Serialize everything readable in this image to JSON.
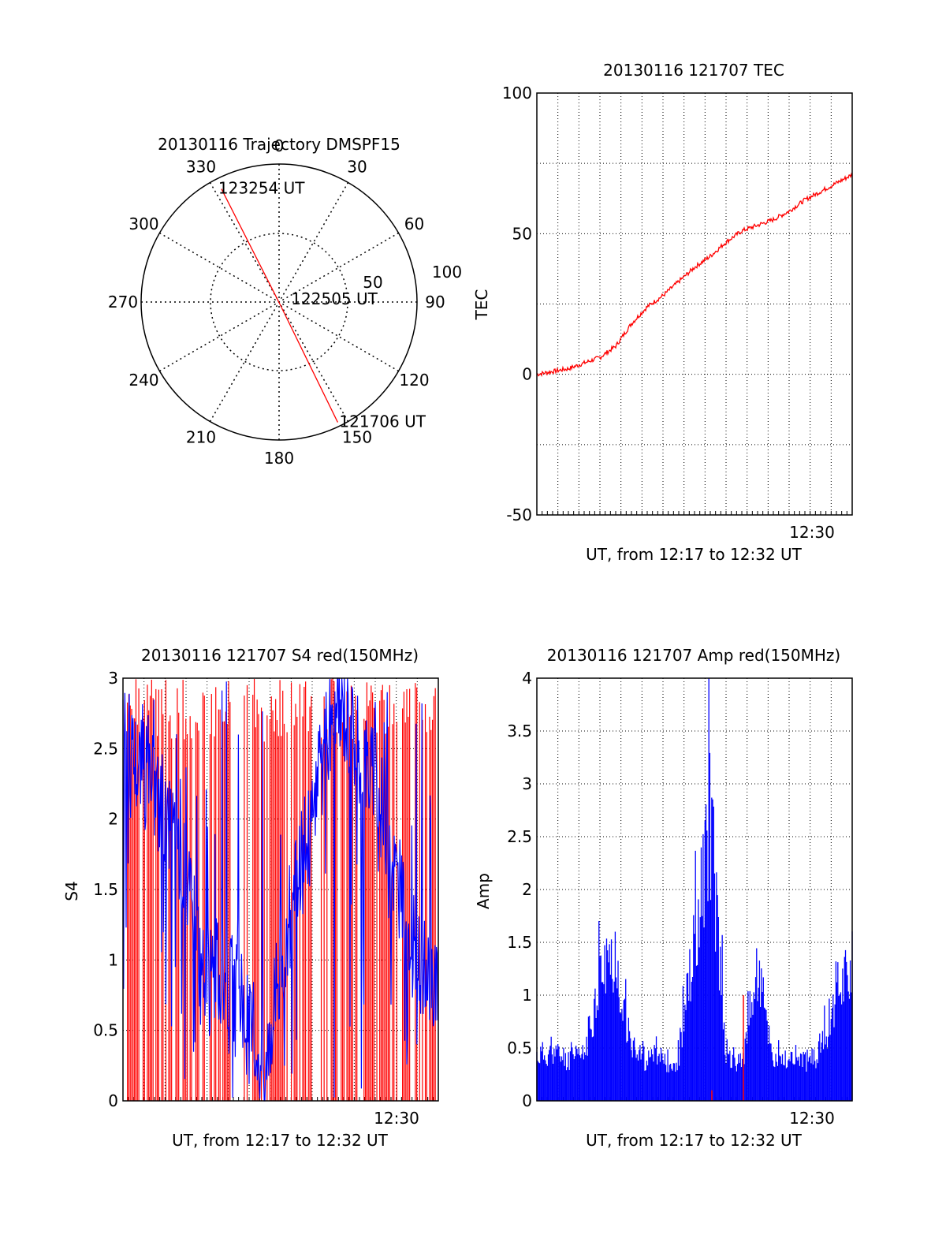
{
  "chart_data": [
    {
      "type": "polar",
      "title": "20130116 Trajectory DMSPF15",
      "angle_labels": [
        "0",
        "30",
        "60",
        "90",
        "120",
        "150",
        "180",
        "210",
        "240",
        "270",
        "300",
        "330"
      ],
      "radius_labels": [
        "50",
        "100"
      ],
      "radius_max": 100,
      "grid": true,
      "trajectory": [
        {
          "label": "123254 UT",
          "azimuth": 333,
          "elevation_r": 92
        },
        {
          "label": "122505 UT",
          "azimuth": 158,
          "elevation_r": 2
        },
        {
          "label": "121706 UT",
          "azimuth": 154,
          "elevation_r": 97
        }
      ],
      "trajectory_color": "#ff0000"
    },
    {
      "type": "line",
      "title": "20130116 121707 TEC",
      "ylabel": "TEC",
      "xlabel": "UT, from 12:17 to 12:32 UT",
      "xtick_label": "12:30",
      "ylim": [
        -50,
        100
      ],
      "yticks": [
        "-50",
        "0",
        "50",
        "100"
      ],
      "grid": true,
      "series": [
        {
          "color": "#ff0000",
          "x": [
            0,
            0.05,
            0.1,
            0.15,
            0.2,
            0.25,
            0.3,
            0.35,
            0.4,
            0.45,
            0.5,
            0.55,
            0.6,
            0.65,
            0.7,
            0.75,
            0.8,
            0.85,
            0.9,
            0.95,
            1.0
          ],
          "values": [
            0,
            1,
            2,
            4,
            6,
            10,
            18,
            24,
            28,
            33,
            38,
            42,
            47,
            51,
            53,
            55,
            58,
            62,
            65,
            68,
            71
          ]
        }
      ]
    },
    {
      "type": "bar",
      "title": "20130116 121707 S4 red(150MHz)",
      "ylabel": "S4",
      "xlabel": "UT, from 12:17 to 12:32 UT",
      "xtick_label": "12:30",
      "ylim": [
        0,
        3
      ],
      "yticks": [
        "0",
        "0.5",
        "1",
        "1.5",
        "2",
        "2.5",
        "3"
      ],
      "grid": true,
      "series": [
        {
          "color": "#ff0000",
          "note_values": "dense saturated spikes 0-3"
        },
        {
          "color": "#0000ff",
          "values": [
            2.6,
            2.4,
            2.2,
            2.0,
            1.6,
            0.85,
            0.9,
            0.8,
            0.5,
            0.3,
            1.0,
            1.5,
            2.0,
            2.6,
            2.8,
            2.5,
            2.3,
            1.8,
            1.2,
            0.9,
            0.85
          ]
        }
      ]
    },
    {
      "type": "bar",
      "title": "20130116 121707 Amp red(150MHz)",
      "ylabel": "Amp",
      "xlabel": "UT, from 12:17 to 12:32 UT",
      "xtick_label": "12:30",
      "ylim": [
        0,
        4
      ],
      "yticks": [
        "0",
        "0.5",
        "1",
        "1.5",
        "2",
        "2.5",
        "3",
        "3.5",
        "4"
      ],
      "grid": true,
      "series": [
        {
          "color": "#0000ff",
          "values": [
            0.55,
            0.6,
            0.5,
            0.55,
            1.5,
            1.8,
            0.6,
            0.5,
            0.5,
            0.45,
            1.9,
            3.5,
            0.5,
            0.45,
            1.6,
            0.5,
            0.5,
            0.5,
            0.5,
            1.4,
            1.7
          ]
        },
        {
          "color": "#ff0000",
          "values": [
            0,
            0,
            0,
            0,
            0,
            0,
            0,
            0,
            0,
            0,
            0,
            0.1,
            0,
            1.0,
            0,
            0,
            0,
            0,
            0,
            0,
            0
          ]
        }
      ]
    }
  ]
}
